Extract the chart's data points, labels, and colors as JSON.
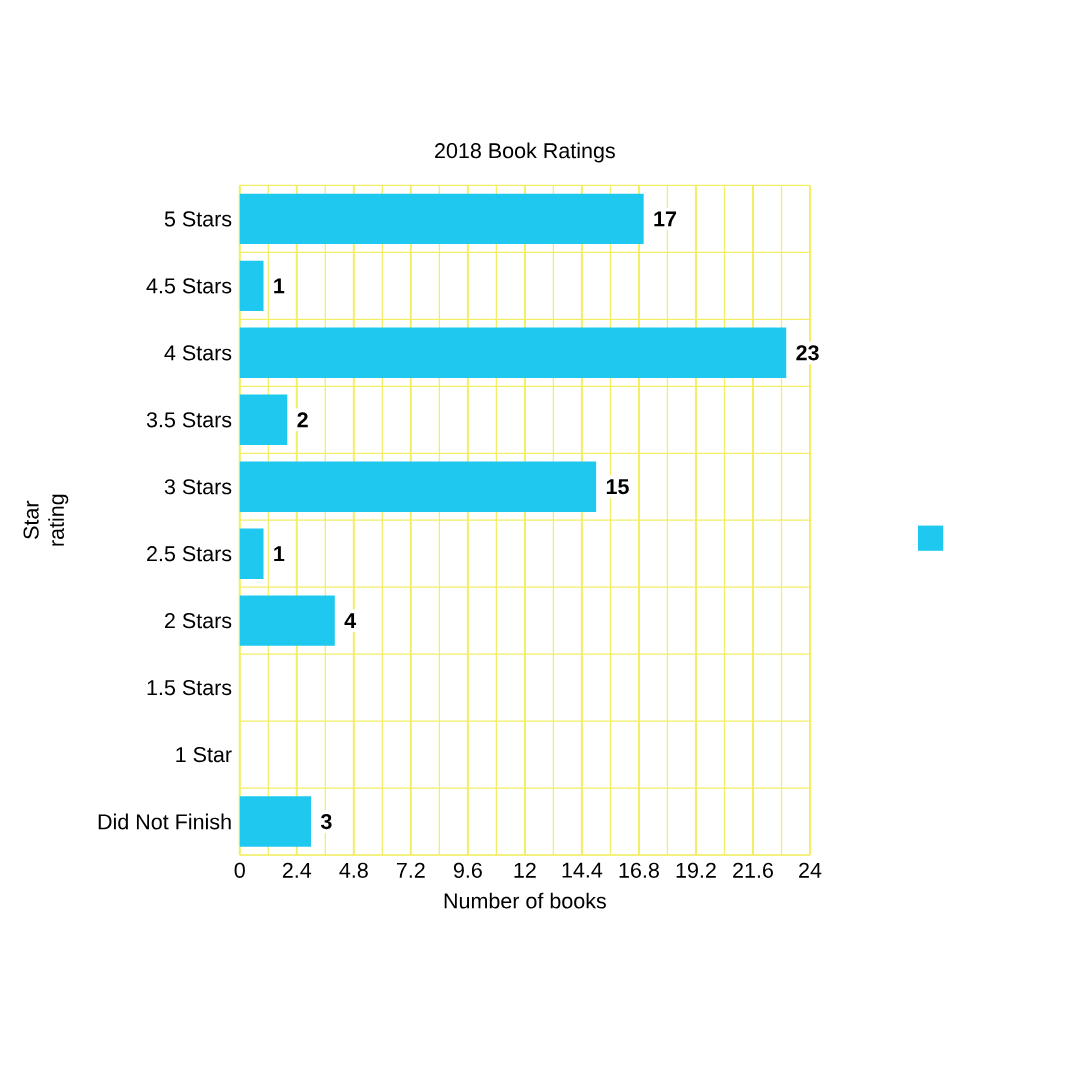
{
  "chart_data": {
    "type": "bar",
    "orientation": "horizontal",
    "title": "2018 Book Ratings",
    "xlabel": "Number of books",
    "ylabel": "Star rating",
    "categories": [
      "5 Stars",
      "4.5 Stars",
      "4 Stars",
      "3.5 Stars",
      "3 Stars",
      "2.5 Stars",
      "2 Stars",
      "1.5 Stars",
      "1 Star",
      "Did Not Finish"
    ],
    "values": [
      17,
      1,
      23,
      2,
      15,
      1,
      4,
      0,
      0,
      3
    ],
    "value_labels": [
      "17",
      "1",
      "23",
      "2",
      "15",
      "1",
      "4",
      null,
      null,
      "3"
    ],
    "color": "#1ec8ef",
    "xlim": [
      0,
      24
    ],
    "xticks": [
      0,
      2.4,
      4.8,
      7.2,
      9.6,
      12,
      14.4,
      16.8,
      19.2,
      21.6,
      24
    ],
    "grid": true
  }
}
